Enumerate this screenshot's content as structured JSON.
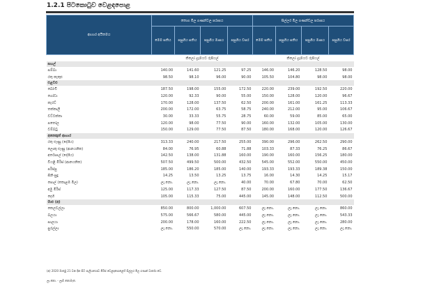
{
  "title": "1.2.1 පිටකොටුව වෙළඳපොළ",
  "header": {
    "item": "ආහාර අයිතමය",
    "wholesale": "තොග මිල ගණන්වල පරාසය",
    "retail": "සිල්ලර මිල ගණන්වල පරාසය",
    "cols": [
      "මෙම සතිය",
      "පසුගිය සතිය",
      "පසුගිය මාසය",
      "පසුගිය වසර"
    ],
    "unit": "කිලෝ ග්‍රෑමයට රුපියල්"
  },
  "sections": [
    {
      "name": "සහල්",
      "rows": [
        {
          "label": "සම්බා",
          "v": [
            "140.00",
            "141.60",
            "121.25",
            "97.25",
            "146.00",
            "146.20",
            "128.50",
            "98.00"
          ]
        },
        {
          "label": "රතු කැකුළු",
          "v": [
            "98.50",
            "98.10",
            "96.00",
            "90.00",
            "105.50",
            "104.80",
            "98.00",
            "98.00"
          ]
        }
      ]
    },
    {
      "name": "එළවළු",
      "rows": [
        {
          "label": "බෝංචි",
          "v": [
            "187.50",
            "198.00",
            "155.00",
            "172.50",
            "220.00",
            "239.00",
            "192.50",
            "220.00"
          ]
        },
        {
          "label": "ගෝවා",
          "v": [
            "120.00",
            "92.33",
            "90.00",
            "55.00",
            "150.00",
            "128.00",
            "120.00",
            "96.67"
          ]
        },
        {
          "label": "කැරට්",
          "v": [
            "170.00",
            "128.00",
            "137.50",
            "62.50",
            "200.00",
            "161.00",
            "161.25",
            "113.33"
          ]
        },
        {
          "label": "තක්කාලි",
          "v": [
            "200.00",
            "172.00",
            "63.75",
            "58.75",
            "240.00",
            "212.00",
            "95.00",
            "106.67"
          ]
        },
        {
          "label": "වට්ටක්කා",
          "v": [
            "30.00",
            "33.33",
            "55.75",
            "28.75",
            "60.00",
            "59.00",
            "85.00",
            "65.00"
          ]
        },
        {
          "label": "පතෝල",
          "v": [
            "120.00",
            "98.00",
            "77.50",
            "90.00",
            "160.00",
            "132.00",
            "105.00",
            "130.00"
          ]
        },
        {
          "label": "වම්බටු",
          "v": [
            "150.00",
            "129.00",
            "77.50",
            "87.50",
            "180.00",
            "168.00",
            "120.00",
            "126.67"
          ]
        }
      ]
    },
    {
      "name": "අනෙකුත් ආහාර",
      "rows": [
        {
          "label": "රතු ළූණු (දේශීය)",
          "v": [
            "313.33",
            "240.00",
            "217.50",
            "255.00",
            "390.00",
            "296.00",
            "262.50",
            "290.00"
          ]
        },
        {
          "label": "ලොකු ළූණු (ආනයනික)",
          "v": [
            "84.00",
            "76.95",
            "60.88",
            "71.88",
            "103.33",
            "87.33",
            "76.25",
            "86.67"
          ]
        },
        {
          "label": "අර්තාපල් (දේශීය)",
          "v": [
            "142.50",
            "138.00",
            "131.88",
            "160.00",
            "190.00",
            "160.00",
            "156.25",
            "180.00"
          ]
        },
        {
          "label": "වියළි මිරිස් (ආනයනික)",
          "v": [
            "507.50",
            "499.50",
            "500.00",
            "432.50",
            "545.00",
            "552.00",
            "550.00",
            "450.00"
          ]
        },
        {
          "label": "පරිප්පු",
          "v": [
            "185.00",
            "186.20",
            "185.00",
            "140.00",
            "193.33",
            "193.33",
            "189.38",
            "150.00"
          ]
        },
        {
          "label": "සීනි-සුදු",
          "v": [
            "14.25",
            "13.50",
            "13.25",
            "13.75",
            "16.00",
            "14.30",
            "14.25",
            "15.17"
          ]
        },
        {
          "label": "පොල් (කොළඹ මිල)",
          "v": [
            "ලැ.නො.",
            "ලැ.නො.",
            "ලැ.නො.",
            "40.00",
            "70.00",
            "67.80",
            "70.00",
            "62.50"
          ]
        },
        {
          "label": "අමු මිරිස්",
          "v": [
            "125.00",
            "117.33",
            "127.50",
            "87.50",
            "200.00",
            "160.00",
            "177.50",
            "136.67"
          ]
        },
        {
          "label": "දෙහි",
          "v": [
            "105.00",
            "115.33",
            "75.00",
            "445.00",
            "145.00",
            "148.00",
            "112.50",
            "500.00"
          ]
        }
      ]
    },
    {
      "name": "මාළු (අ)",
      "rows": [
        {
          "label": "කෙලවල්ලා",
          "v": [
            "850.00",
            "800.00",
            "1,000.00",
            "607.50",
            "ලැ.නො.",
            "ලැ.නො.",
            "ලැ.නො.",
            "860.00"
          ]
        },
        {
          "label": "බලයා",
          "v": [
            "575.00",
            "566.67",
            "580.00",
            "445.00",
            "ලැ.නො.",
            "ලැ.නො.",
            "ලැ.නො.",
            "543.33"
          ]
        },
        {
          "label": "සාලයා",
          "v": [
            "200.00",
            "178.00",
            "160.00",
            "222.50",
            "ලැ.නො.",
            "ලැ.නො.",
            "ලැ.නො.",
            "280.00"
          ]
        },
        {
          "label": "සුරල්ලා",
          "v": [
            "ලැ.නො.",
            "550.00",
            "570.00",
            "ලැ.නො.",
            "ලැ.නො.",
            "ලැ.නො.",
            "ලැ.නො.",
            "ලැ.නො."
          ]
        }
      ]
    }
  ],
  "footnote": "(අ) 2020 මාර්තු 21 වන දින සිට පැලියගොඩ මිරිස් වෙළඳපොළෙහි සිල්ලර මිල ගණන් වාර්තා වේ.",
  "legend": "ලැ.නො. - ලැබී නොමැත."
}
